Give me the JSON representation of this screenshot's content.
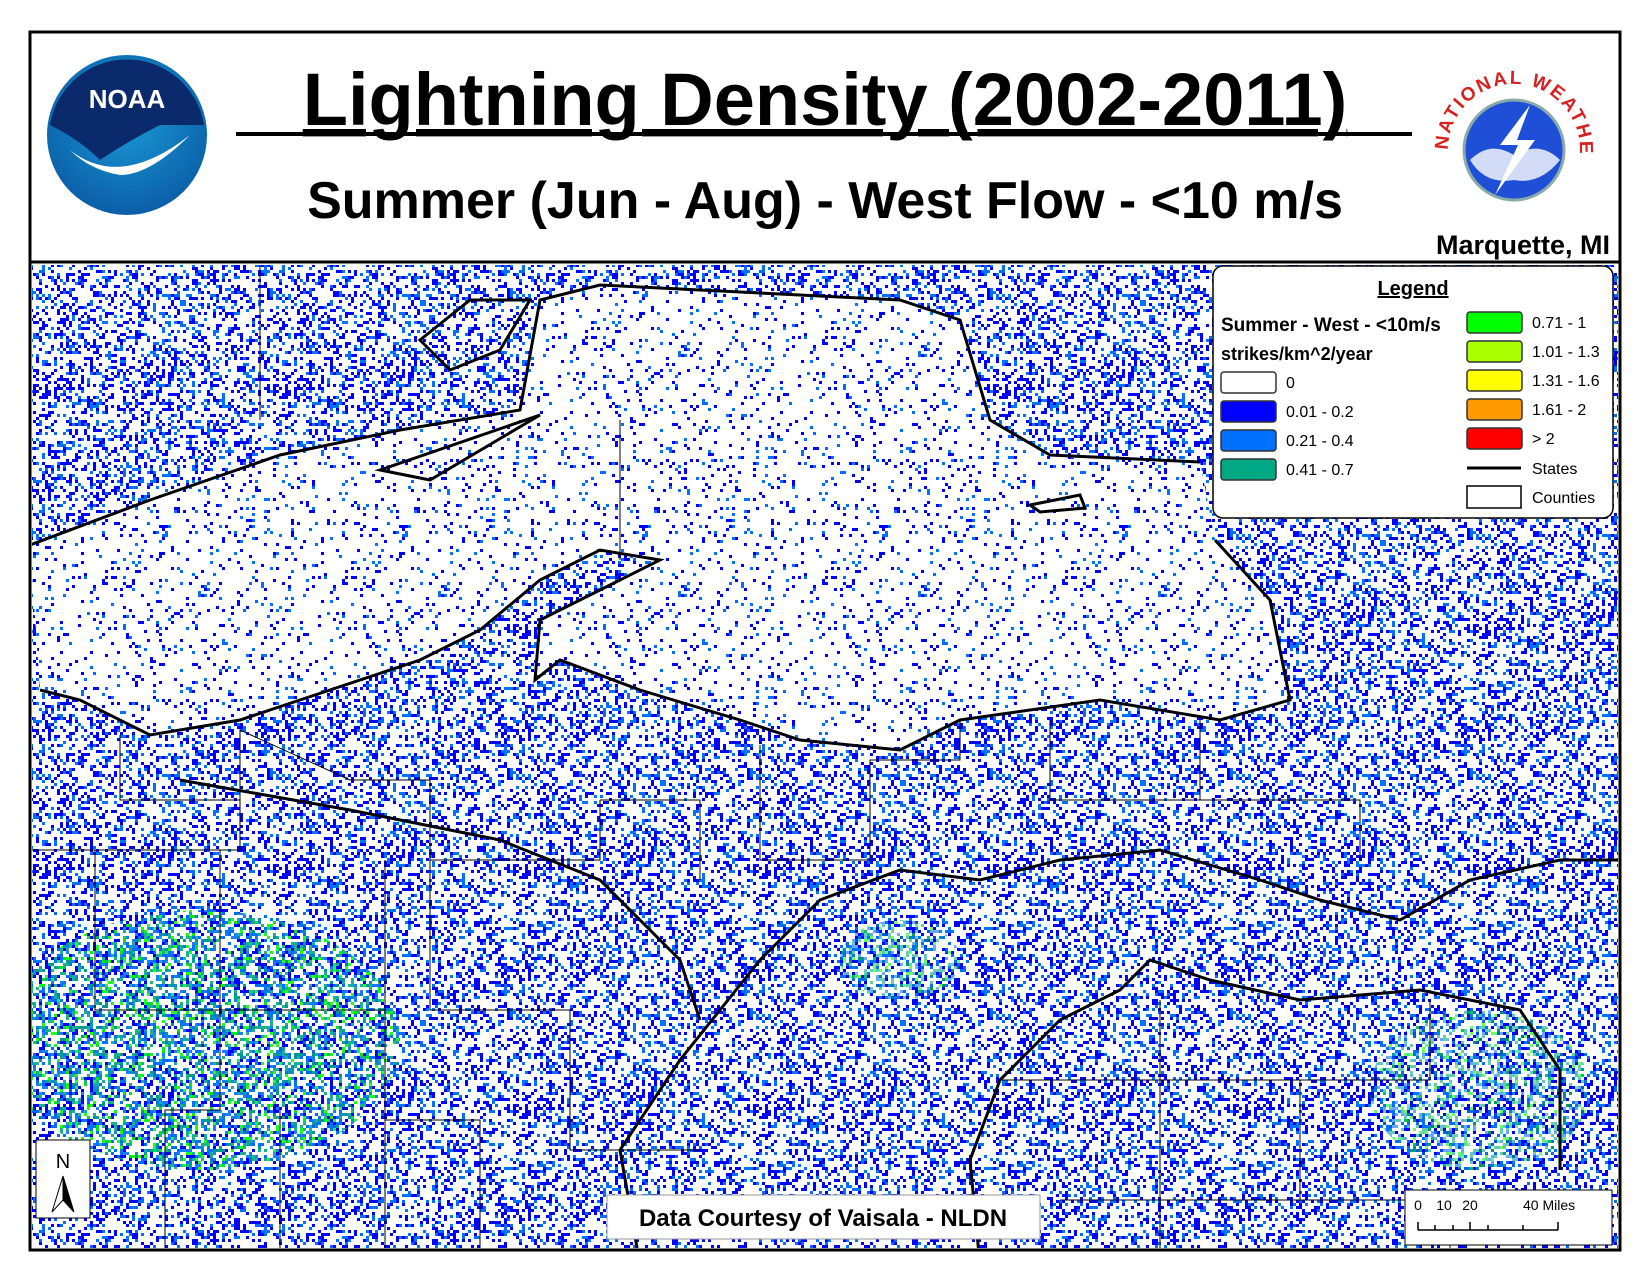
{
  "header": {
    "title": "Lightning Density (2002-2011)",
    "subtitle": "Summer (Jun - Aug) - West Flow - <10 m/s",
    "office": "Marquette, MI",
    "noaa_logo": "NOAA",
    "nws_logo": "NATIONAL WEATHER SERVICE"
  },
  "legend": {
    "title": "Legend",
    "subtitle": "Summer - West - <10m/s",
    "units": "strikes/km^2/year",
    "items": [
      {
        "label": "0",
        "color": "#ffffff"
      },
      {
        "label": "0.01 - 0.2",
        "color": "#0000ff"
      },
      {
        "label": "0.21 - 0.4",
        "color": "#0070ff"
      },
      {
        "label": "0.41 - 0.7",
        "color": "#00a884"
      },
      {
        "label": "0.71 - 1",
        "color": "#00ff00"
      },
      {
        "label": "1.01 - 1.3",
        "color": "#aaff00"
      },
      {
        "label": "1.31 - 1.6",
        "color": "#ffff00"
      },
      {
        "label": "1.61 - 2",
        "color": "#ff9900"
      },
      {
        "label": "> 2",
        "color": "#ff0000"
      }
    ],
    "states": "States",
    "counties": "Counties"
  },
  "north_arrow": "N",
  "credit": "Data Courtesy of Vaisala - NLDN",
  "scale_bar": [
    "0",
    "10",
    "20",
    "40 Miles"
  ]
}
